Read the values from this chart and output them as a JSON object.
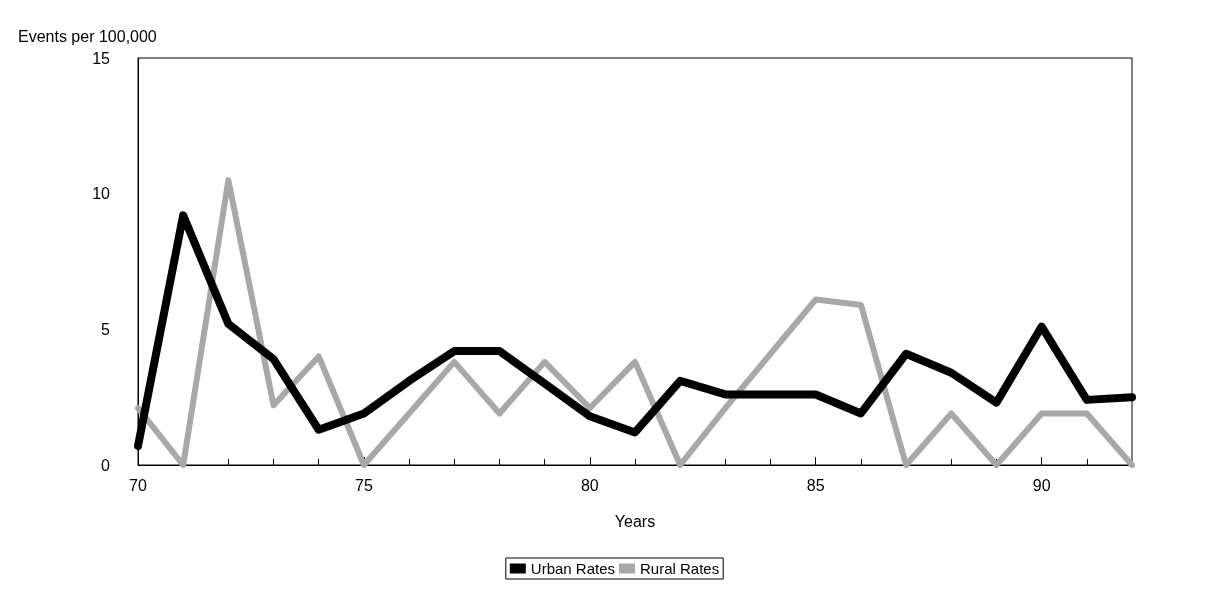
{
  "chart_data": {
    "type": "line",
    "xlabel": "Years",
    "ylabel": "Events per 100,000",
    "x": [
      70,
      71,
      72,
      73,
      74,
      75,
      76,
      77,
      78,
      79,
      80,
      81,
      82,
      83,
      84,
      85,
      86,
      87,
      88,
      89,
      90,
      91,
      92
    ],
    "series": [
      {
        "name": "Urban Rates",
        "color": "#000000",
        "values": [
          0.7,
          9.2,
          5.2,
          3.9,
          1.3,
          1.9,
          3.1,
          4.2,
          4.2,
          3.0,
          1.8,
          1.2,
          3.1,
          2.6,
          2.6,
          2.6,
          1.9,
          4.1,
          3.4,
          2.3,
          5.1,
          2.4,
          2.5
        ]
      },
      {
        "name": "Rural Rates",
        "color": "#a8a8a8",
        "values": [
          2.1,
          0,
          10.5,
          2.2,
          4.0,
          0,
          1.9,
          3.8,
          1.9,
          3.8,
          2.1,
          3.8,
          0,
          2.1,
          4.1,
          6.1,
          5.9,
          0,
          1.9,
          0,
          1.9,
          1.9,
          0
        ]
      }
    ],
    "xlim": [
      70,
      92
    ],
    "xticks": [
      70,
      75,
      80,
      85,
      90
    ],
    "ylim": [
      0,
      15
    ],
    "yticks": [
      0,
      5,
      10,
      15
    ],
    "grid": false,
    "legend": "bottom",
    "marker": "none",
    "line_style": "solid"
  }
}
